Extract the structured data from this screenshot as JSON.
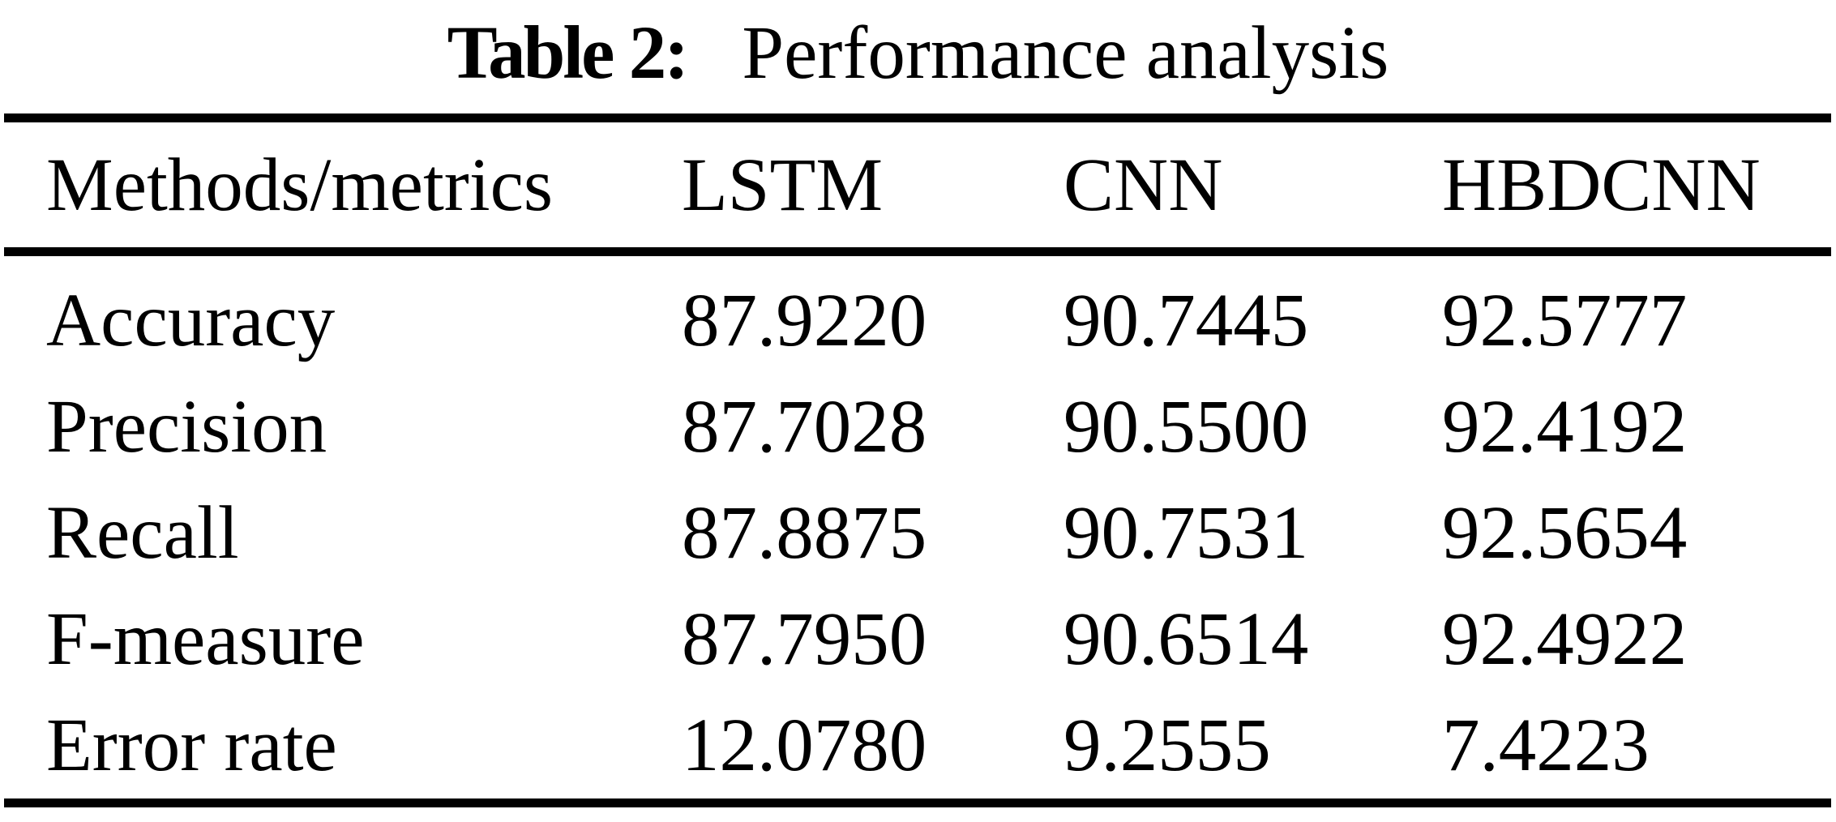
{
  "caption": {
    "label": "Table 2:",
    "text": "Performance analysis"
  },
  "table": {
    "columns": [
      "Methods/metrics",
      "LSTM",
      "CNN",
      "HBDCNN"
    ],
    "rows": [
      [
        "Accuracy",
        "87.9220",
        "90.7445",
        "92.5777"
      ],
      [
        "Precision",
        "87.7028",
        "90.5500",
        "92.4192"
      ],
      [
        "Recall",
        "87.8875",
        "90.7531",
        "92.5654"
      ],
      [
        "F-measure",
        "87.7950",
        "90.6514",
        "92.4922"
      ],
      [
        "Error rate",
        "12.0780",
        "9.2555",
        "7.4223"
      ]
    ]
  },
  "colors": {
    "background": "#ffffff",
    "text": "#000000",
    "rule": "#000000"
  }
}
